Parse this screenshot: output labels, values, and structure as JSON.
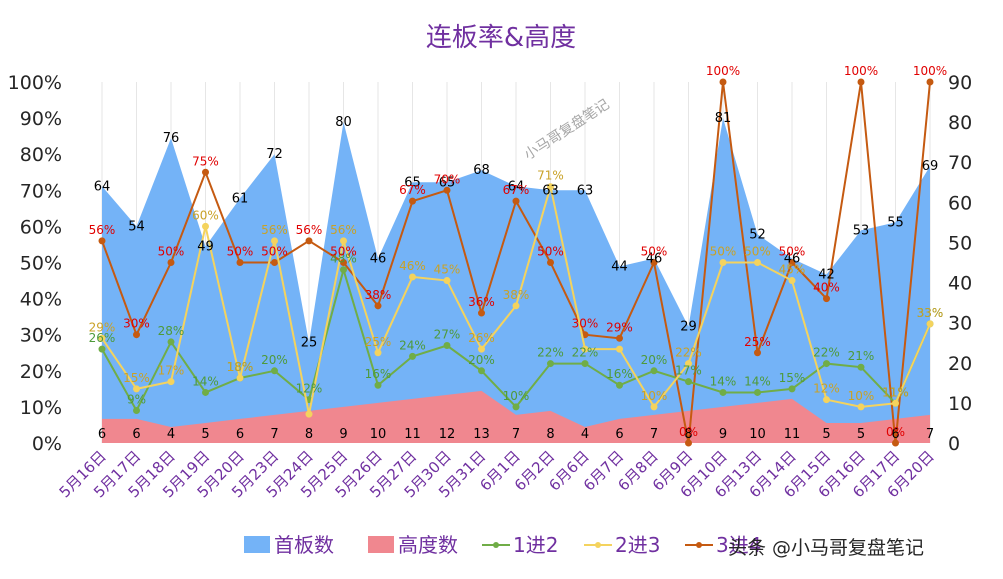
{
  "chart_data": {
    "type": "area+line",
    "title": "连板率&高度",
    "categories": [
      "5月16日",
      "5月17日",
      "5月18日",
      "5月19日",
      "5月20日",
      "5月23日",
      "5月24日",
      "5月25日",
      "5月26日",
      "5月27日",
      "5月30日",
      "5月31日",
      "6月1日",
      "6月2日",
      "6月6日",
      "6月7日",
      "6月8日",
      "6月9日",
      "6月10日",
      "6月13日",
      "6月14日",
      "6月15日",
      "6月16日",
      "6月17日",
      "6月20日"
    ],
    "y_left": {
      "ticks": [
        "0%",
        "10%",
        "20%",
        "30%",
        "40%",
        "50%",
        "60%",
        "70%",
        "80%",
        "90%",
        "100%"
      ],
      "range": [
        0,
        100
      ]
    },
    "y_right": {
      "ticks": [
        "0",
        "10",
        "20",
        "30",
        "40",
        "50",
        "60",
        "70",
        "80",
        "90"
      ],
      "range": [
        0,
        90
      ]
    },
    "series": [
      {
        "name": "首板数",
        "axis": "right",
        "kind": "area",
        "color": "#74b3f7",
        "values": [
          64,
          54,
          76,
          49,
          61,
          72,
          25,
          80,
          46,
          65,
          65,
          68,
          64,
          63,
          63,
          44,
          46,
          29,
          81,
          52,
          46,
          42,
          53,
          55,
          69
        ],
        "labels": [
          "64",
          "54",
          "76",
          "49",
          "61",
          "72",
          "25",
          "80",
          "46",
          "65",
          "65",
          "68",
          "64",
          "63",
          "63",
          "44",
          "46",
          "29",
          "81",
          "52",
          "46",
          "42",
          "53",
          "55",
          "69"
        ]
      },
      {
        "name": "高度数",
        "axis": "right",
        "kind": "area",
        "color": "#f0878f",
        "values": [
          6,
          6,
          4,
          5,
          6,
          7,
          8,
          9,
          10,
          11,
          12,
          13,
          7,
          8,
          4,
          6,
          7,
          8,
          9,
          10,
          11,
          5,
          5,
          6,
          7
        ],
        "labels": [
          "6",
          "6",
          "4",
          "5",
          "6",
          "7",
          "8",
          "9",
          "10",
          "11",
          "12",
          "13",
          "7",
          "8",
          "4",
          "6",
          "7",
          "8",
          "9",
          "10",
          "11",
          "5",
          "5",
          "6",
          "7"
        ]
      },
      {
        "name": "1进2",
        "axis": "left",
        "kind": "line",
        "color": "#70ad47",
        "values": [
          26,
          9,
          28,
          14,
          18,
          20,
          12,
          48,
          16,
          24,
          27,
          20,
          10,
          22,
          22,
          16,
          20,
          17,
          14,
          14,
          15,
          22,
          21,
          11,
          33
        ],
        "labels": [
          "26%",
          "9%",
          "28%",
          "14%",
          "18%",
          "20%",
          "12%",
          "48%",
          "16%",
          "24%",
          "27%",
          "20%",
          "10%",
          "22%",
          "22%",
          "16%",
          "20%",
          "17%",
          "14%",
          "14%",
          "15%",
          "22%",
          "21%",
          "11%",
          "33%"
        ]
      },
      {
        "name": "2进3",
        "axis": "left",
        "kind": "line",
        "color": "#f4d35e",
        "values": [
          29,
          15,
          17,
          60,
          18,
          56,
          8,
          56,
          25,
          46,
          45,
          26,
          38,
          71,
          26,
          26,
          10,
          22,
          50,
          50,
          45,
          12,
          10,
          11,
          33
        ],
        "labels": [
          "29%",
          "15%",
          "17%",
          "60%",
          "18%",
          "56%",
          "",
          "56%",
          "25%",
          "46%",
          "45%",
          "26%",
          "38%",
          "71%",
          "",
          "",
          "10%",
          "22%",
          "50%",
          "50%",
          "45%",
          "12%",
          "10%",
          "11%",
          "33%"
        ]
      },
      {
        "name": "3进4",
        "axis": "left",
        "kind": "line",
        "color": "#c55a11",
        "values": [
          56,
          30,
          50,
          75,
          50,
          50,
          56,
          50,
          38,
          67,
          70,
          36,
          67,
          50,
          30,
          29,
          50,
          0,
          100,
          25,
          50,
          40,
          100,
          0,
          100
        ],
        "labels": [
          "56%",
          "30%",
          "50%",
          "75%",
          "50%",
          "50%",
          "56%",
          "50%",
          "38%",
          "67%",
          "70%",
          "36%",
          "67%",
          "50%",
          "30%",
          "29%",
          "50%",
          "0%",
          "100%",
          "25%",
          "50%",
          "40%",
          "100%",
          "0%",
          "100%"
        ]
      }
    ],
    "legend": {
      "position": "bottom",
      "labels": [
        "首板数",
        "高度数",
        "1进2",
        "2进3",
        "3进4"
      ]
    }
  },
  "watermark": "小马哥复盘笔记",
  "credit": "头条 @小马哥复盘笔记"
}
